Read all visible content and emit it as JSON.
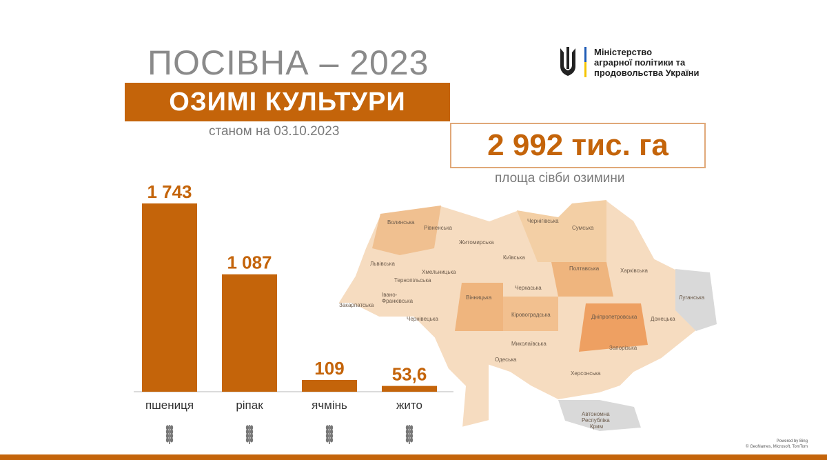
{
  "title": "ПОСІВНА – 2023",
  "subtitle": "ОЗИМІ КУЛЬТУРИ",
  "date_text": "станом на 03.10.2023",
  "total": {
    "value": "2 992 тис. га",
    "caption": "площа сівби озимини"
  },
  "ministry": {
    "lines": [
      "Міністерство",
      "аграрної політики та",
      "продовольства України"
    ]
  },
  "colors": {
    "accent": "#c4640a",
    "bar": "#c4640a",
    "trident_blue": "#1f5bb5",
    "trident_yellow": "#f5c400"
  },
  "chart_data": {
    "type": "bar",
    "categories": [
      "пшениця",
      "ріпак",
      "ячмінь",
      "жито"
    ],
    "values": [
      1743,
      1087,
      109,
      53.6
    ],
    "value_labels": [
      "1 743",
      "1 087",
      "109",
      "53,6"
    ],
    "icons": [
      "wheat-icon",
      "rapeseed-icon",
      "barley-icon",
      "rye-icon"
    ],
    "title": "",
    "xlabel": "",
    "ylabel": "",
    "ylim": [
      0,
      1743
    ]
  },
  "map": {
    "regions": [
      "Волинська",
      "Рівненська",
      "Житомирська",
      "Чернігівська",
      "Сумська",
      "Київська",
      "Львівська",
      "Хмельницька",
      "Тернопільська",
      "Полтавська",
      "Харківська",
      "Луганська",
      "Черкаська",
      "Закарпатська",
      "Івано-",
      "Франківська",
      "Вінницька",
      "Кіровоградська",
      "Дніпропетровська",
      "Донецька",
      "Чернівецька",
      "Миколаївська",
      "Запорізька",
      "Одеська",
      "Херсонська",
      "Автономна",
      "Республіка",
      "Крим"
    ]
  },
  "credit": {
    "line1": "Powered by Bing",
    "line2": "© GeoNames, Microsoft, TomTom"
  }
}
